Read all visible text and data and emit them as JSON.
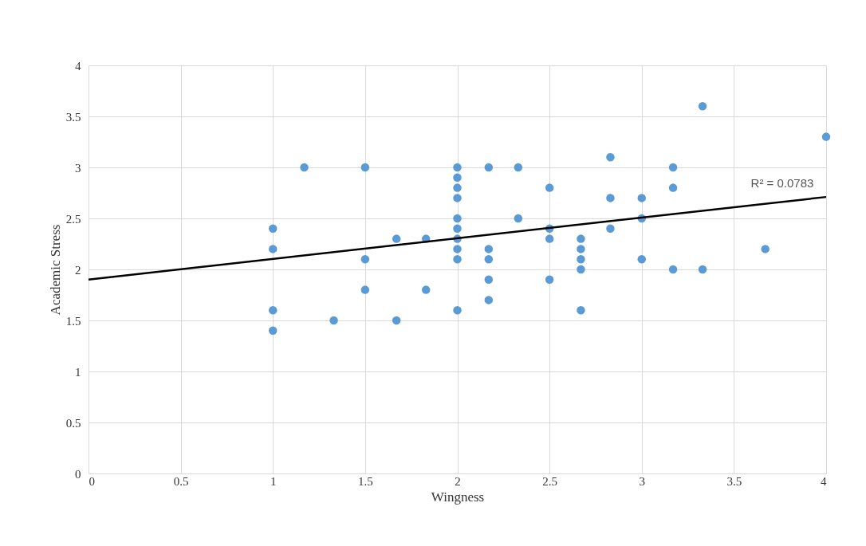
{
  "chart_data": {
    "type": "scatter",
    "xlabel": "Wingness",
    "ylabel": "Academic Stress",
    "xlim": [
      0,
      4
    ],
    "ylim": [
      0,
      4
    ],
    "xticks": [
      0,
      0.5,
      1,
      1.5,
      2,
      2.5,
      3,
      3.5,
      4
    ],
    "yticks": [
      0,
      0.5,
      1,
      1.5,
      2,
      2.5,
      3,
      3.5,
      4
    ],
    "grid": true,
    "series": [
      {
        "marker": "circle",
        "color": "#5b9bd5",
        "x": [
          1,
          1,
          1,
          1,
          1.17,
          1.33,
          1.5,
          1.5,
          1.5,
          1.67,
          1.67,
          1.83,
          1.83,
          2,
          2,
          2,
          2,
          2,
          2,
          2,
          2,
          2,
          2,
          2.17,
          2.17,
          2.17,
          2.17,
          2.17,
          2.33,
          2.33,
          2.5,
          2.5,
          2.5,
          2.5,
          2.67,
          2.67,
          2.67,
          2.67,
          2.67,
          2.83,
          2.83,
          2.83,
          3,
          3,
          3,
          3.17,
          3.17,
          3.17,
          3.33,
          3.33,
          3.67,
          4
        ],
        "values": [
          2.4,
          2.2,
          1.6,
          1.4,
          3.0,
          1.5,
          3.0,
          2.1,
          1.8,
          2.3,
          1.5,
          2.3,
          1.8,
          3.0,
          2.9,
          2.8,
          2.7,
          2.5,
          2.4,
          2.3,
          2.2,
          2.1,
          1.6,
          3.0,
          2.2,
          2.1,
          1.9,
          1.7,
          3.0,
          2.5,
          2.8,
          2.4,
          2.3,
          1.9,
          2.3,
          2.2,
          2.1,
          2.0,
          1.6,
          3.1,
          2.7,
          2.4,
          2.7,
          2.5,
          2.1,
          3.0,
          2.8,
          2.0,
          3.6,
          2.0,
          2.2,
          3.3
        ]
      },
      {
        "type": "line",
        "color": "#000000",
        "x": [
          0,
          4
        ],
        "values": [
          1.9,
          2.71
        ]
      }
    ],
    "annotations": [
      "R² = 0.0783"
    ]
  }
}
